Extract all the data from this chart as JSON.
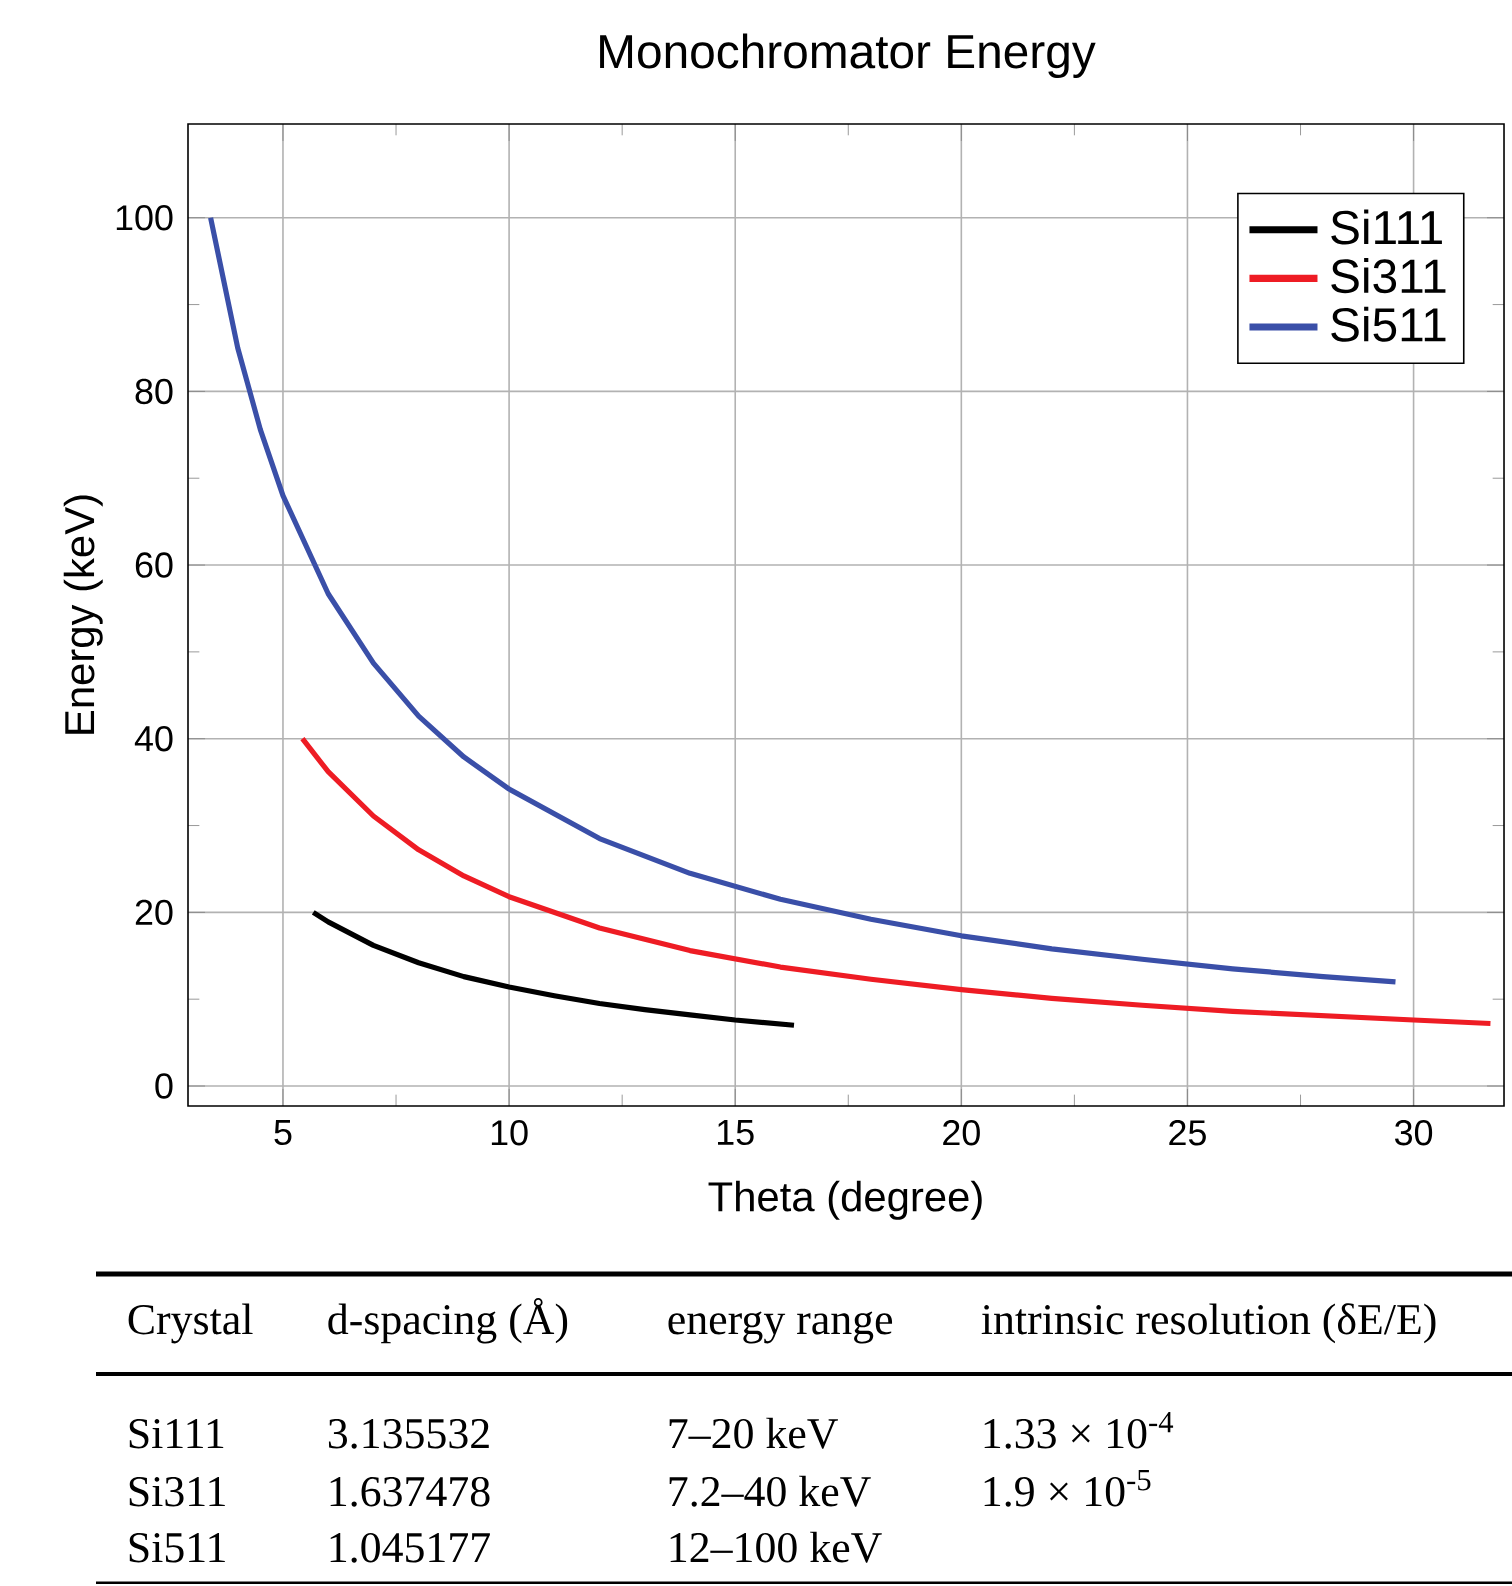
{
  "chart_data": {
    "type": "line",
    "title": "Monochromator Energy",
    "xlabel": "Theta (degree)",
    "ylabel": "Energy (keV)",
    "xlim": [
      2.9,
      32
    ],
    "ylim": [
      -2.3,
      110.8
    ],
    "xticks": [
      5,
      10,
      15,
      20,
      25,
      30
    ],
    "yticks": [
      0,
      20,
      40,
      60,
      80,
      100
    ],
    "grid": true,
    "legend": "top right",
    "line_style": "solid",
    "marker": "none",
    "series": [
      {
        "name": "Si111",
        "color": "#000000",
        "x": [
          5.67,
          6,
          7,
          8,
          9,
          10,
          11,
          12,
          13,
          14,
          15,
          16.3
        ],
        "values": [
          20.0,
          18.9,
          16.2,
          14.2,
          12.6,
          11.4,
          10.4,
          9.5,
          8.8,
          8.2,
          7.6,
          7.0
        ]
      },
      {
        "name": "Si311",
        "color": "#ee1c24",
        "x": [
          5.43,
          6,
          7,
          8,
          9,
          10,
          12,
          14,
          16,
          18,
          20,
          22,
          24,
          26,
          28,
          30,
          31.7
        ],
        "values": [
          40,
          36.2,
          31.1,
          27.2,
          24.2,
          21.8,
          18.2,
          15.6,
          13.7,
          12.3,
          11.1,
          10.1,
          9.3,
          8.6,
          8.1,
          7.6,
          7.2
        ]
      },
      {
        "name": "Si511",
        "color": "#3a4fa8",
        "x": [
          3.4,
          4,
          4.5,
          5,
          6,
          7,
          8,
          9,
          10,
          12,
          14,
          16,
          18,
          20,
          22,
          24,
          26,
          28,
          29.6
        ],
        "values": [
          100,
          85.0,
          75.6,
          68.0,
          56.7,
          48.7,
          42.6,
          37.9,
          34.2,
          28.5,
          24.5,
          21.5,
          19.2,
          17.3,
          15.8,
          14.6,
          13.5,
          12.6,
          12.0
        ]
      }
    ],
    "annotations": [
      "Crystal",
      "d-spacing (Å)",
      "energy range",
      "intrinsic resolution (δE/E)",
      "Si111",
      "3.135532",
      "7–20 keV",
      "1.33 × 10$^{-4}$",
      "Si311",
      "1.637478",
      "7.2–40 keV",
      "1.9 × 10$^{-5}$",
      "Si511",
      "1.045177",
      "12–100 keV"
    ]
  }
}
